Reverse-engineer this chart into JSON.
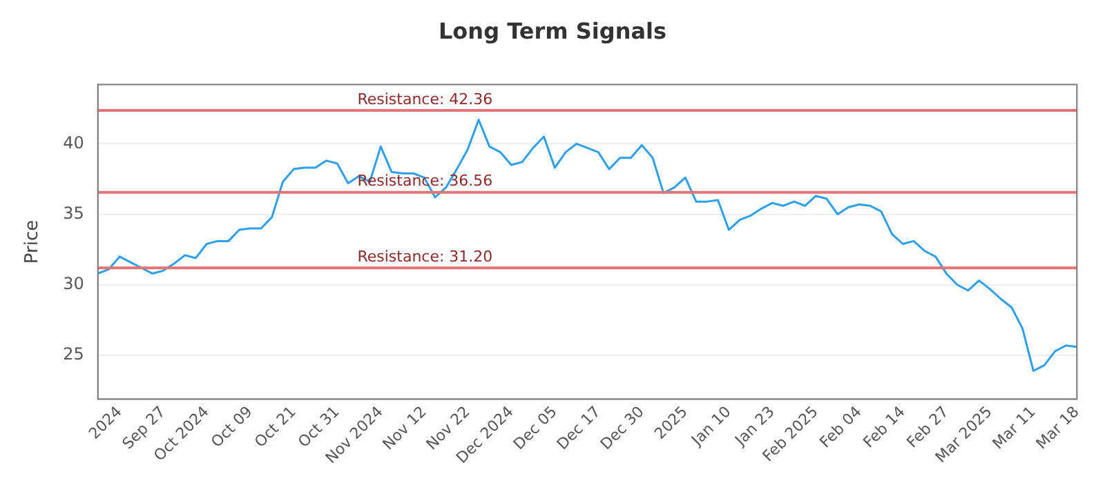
{
  "chart_data": {
    "type": "line",
    "title": "Long Term Signals",
    "ylabel": "Price",
    "categories": [
      null,
      null,
      "2024",
      null,
      null,
      null,
      "Sep 27",
      null,
      null,
      null,
      "Oct 2024",
      null,
      null,
      null,
      "Oct 09",
      null,
      null,
      null,
      "Oct 21",
      null,
      null,
      null,
      "Oct 31",
      null,
      null,
      null,
      "Nov 2024",
      null,
      null,
      null,
      "Nov 12",
      null,
      null,
      null,
      "Nov 22",
      null,
      null,
      null,
      "Dec 2024",
      null,
      null,
      null,
      "Dec 05",
      null,
      null,
      null,
      "Dec 17",
      null,
      null,
      null,
      "Dec 30",
      null,
      null,
      null,
      "2025",
      null,
      null,
      null,
      "Jan 10",
      null,
      null,
      null,
      "Jan 23",
      null,
      null,
      null,
      "Feb 2025",
      null,
      null,
      null,
      "Feb 04",
      null,
      null,
      null,
      "Feb 14",
      null,
      null,
      null,
      "Feb 27",
      null,
      null,
      null,
      "Mar 2025",
      null,
      null,
      null,
      "Mar 11",
      null,
      null,
      null,
      "Mar 18"
    ],
    "series": [
      {
        "color": "#2f9fe8",
        "values": [
          30.8,
          31.1,
          32.0,
          31.6,
          31.2,
          30.8,
          31.0,
          31.5,
          32.1,
          31.9,
          32.9,
          33.1,
          33.1,
          33.9,
          34.0,
          34.0,
          34.8,
          37.3,
          38.2,
          38.3,
          38.3,
          38.8,
          38.6,
          37.2,
          37.7,
          37.3,
          39.8,
          38.0,
          37.9,
          37.9,
          37.6,
          36.2,
          36.9,
          38.2,
          39.6,
          41.7,
          39.8,
          39.4,
          38.5,
          38.7,
          39.7,
          40.5,
          38.3,
          39.4,
          40.0,
          39.7,
          39.4,
          38.2,
          39.0,
          39.0,
          39.9,
          39.0,
          36.5,
          36.9,
          37.6,
          35.9,
          35.9,
          36.0,
          33.9,
          34.6,
          34.9,
          35.4,
          35.8,
          35.6,
          35.9,
          35.6,
          36.3,
          36.1,
          35.0,
          35.5,
          35.7,
          35.6,
          35.2,
          33.6,
          32.9,
          33.1,
          32.4,
          32.0,
          30.8,
          30.0,
          29.6,
          30.3,
          29.7,
          29.0,
          28.4,
          26.9,
          23.9,
          24.3,
          25.3,
          25.7,
          25.6
        ]
      }
    ],
    "ylim": [
      21.9,
      44.2
    ],
    "yticks": [
      25,
      30,
      35,
      40
    ],
    "grid": "y",
    "legend": false,
    "marker": "none",
    "line_style": "solid",
    "ref_lines": [
      {
        "axis": "y",
        "value": 42.36,
        "label": "Resistance: 42.36",
        "color": "#e57373"
      },
      {
        "axis": "y",
        "value": 36.56,
        "label": "Resistance: 36.56",
        "color": "#e57373"
      },
      {
        "axis": "y",
        "value": 31.2,
        "label": "Resistance: 31.20",
        "color": "#e57373"
      }
    ]
  }
}
